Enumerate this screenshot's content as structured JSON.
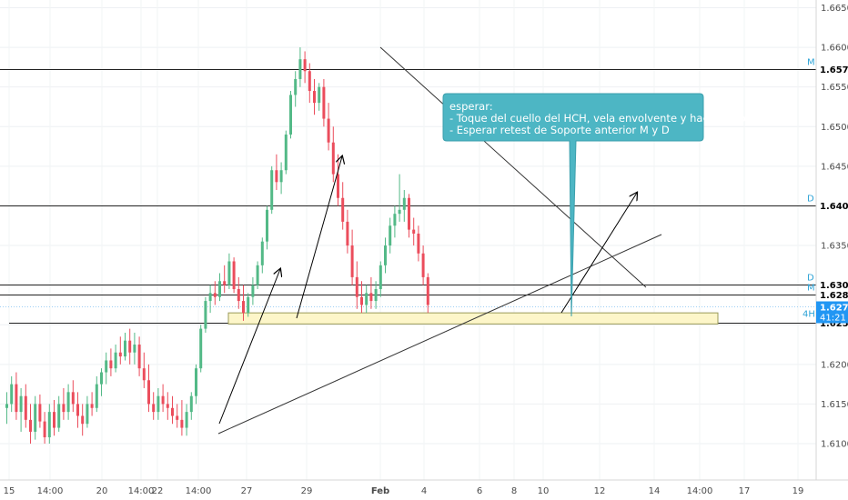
{
  "chart_data": {
    "type": "candlestick",
    "y_axis": {
      "range": [
        1.6052,
        1.6658
      ],
      "ticks": [
        "1.66500",
        "1.66000",
        "1.65500",
        "1.65000",
        "1.64500",
        "1.64000",
        "1.63500",
        "1.63000",
        "1.62500",
        "1.62000",
        "1.61500",
        "1.61000"
      ]
    },
    "x_axis": {
      "tick_labels": [
        "15",
        "14:00",
        "20",
        "14:00",
        "22",
        "14:00",
        "27",
        "29",
        "Feb",
        "4",
        "6",
        "8",
        "10",
        "12",
        "14",
        "14:00",
        "17",
        "19"
      ]
    },
    "price_levels": [
      {
        "value": "1.65727",
        "tag": "M"
      },
      {
        "value": "1.64010",
        "tag": "D"
      },
      {
        "value": "1.63013",
        "tag": "D"
      },
      {
        "value": "1.62878",
        "tag": "M"
      },
      {
        "value": "1.62530",
        "tag": ""
      }
    ],
    "current_price": {
      "value": "1.62735",
      "timer": "41:21",
      "timeframe": "4H"
    },
    "colors": {
      "up": "#53b987",
      "down": "#eb4d5c",
      "current": "#2196f3",
      "note_box": "#4db6c4",
      "zone_fill": "#fdf6c9",
      "zone_border": "#9a9a58",
      "line": "#222222"
    },
    "annotation": {
      "lines": [
        "esperar:",
        "- Toque del cuello del HCH, vela envolvente y hacia arriba",
        "- Esperar retest de Soporte anterior M y D"
      ]
    },
    "support_zone": [
      1.6251,
      1.6265
    ],
    "candles": [
      [
        1.6145,
        1.6165,
        1.6125,
        1.615
      ],
      [
        1.615,
        1.6185,
        1.614,
        1.6175
      ],
      [
        1.6175,
        1.619,
        1.613,
        1.614
      ],
      [
        1.614,
        1.617,
        1.6115,
        1.616
      ],
      [
        1.616,
        1.6175,
        1.612,
        1.613
      ],
      [
        1.613,
        1.615,
        1.61,
        1.6115
      ],
      [
        1.6115,
        1.616,
        1.6105,
        1.615
      ],
      [
        1.615,
        1.6162,
        1.612,
        1.6128
      ],
      [
        1.6128,
        1.614,
        1.61,
        1.6108
      ],
      [
        1.6108,
        1.615,
        1.61,
        1.614
      ],
      [
        1.614,
        1.6155,
        1.611,
        1.612
      ],
      [
        1.612,
        1.616,
        1.6115,
        1.615
      ],
      [
        1.615,
        1.617,
        1.613,
        1.614
      ],
      [
        1.614,
        1.6175,
        1.613,
        1.6165
      ],
      [
        1.6165,
        1.618,
        1.614,
        1.615
      ],
      [
        1.615,
        1.6165,
        1.612,
        1.6135
      ],
      [
        1.6135,
        1.615,
        1.611,
        1.6125
      ],
      [
        1.6125,
        1.616,
        1.612,
        1.615
      ],
      [
        1.615,
        1.6165,
        1.6135,
        1.6145
      ],
      [
        1.6145,
        1.6185,
        1.614,
        1.6175
      ],
      [
        1.6175,
        1.6195,
        1.616,
        1.619
      ],
      [
        1.619,
        1.6215,
        1.6175,
        1.6205
      ],
      [
        1.6205,
        1.622,
        1.6185,
        1.6195
      ],
      [
        1.6195,
        1.6225,
        1.619,
        1.6215
      ],
      [
        1.6215,
        1.6235,
        1.62,
        1.621
      ],
      [
        1.621,
        1.624,
        1.6205,
        1.623
      ],
      [
        1.623,
        1.6245,
        1.62,
        1.6215
      ],
      [
        1.6215,
        1.624,
        1.62,
        1.6225
      ],
      [
        1.6225,
        1.6235,
        1.6185,
        1.6195
      ],
      [
        1.6195,
        1.6215,
        1.617,
        1.618
      ],
      [
        1.618,
        1.62,
        1.614,
        1.615
      ],
      [
        1.615,
        1.6165,
        1.613,
        1.614
      ],
      [
        1.614,
        1.617,
        1.613,
        1.616
      ],
      [
        1.616,
        1.6175,
        1.614,
        1.615
      ],
      [
        1.615,
        1.6165,
        1.613,
        1.6145
      ],
      [
        1.6145,
        1.616,
        1.6125,
        1.6135
      ],
      [
        1.6135,
        1.615,
        1.612,
        1.613
      ],
      [
        1.613,
        1.6155,
        1.611,
        1.612
      ],
      [
        1.612,
        1.615,
        1.611,
        1.614
      ],
      [
        1.614,
        1.6165,
        1.613,
        1.616
      ],
      [
        1.616,
        1.62,
        1.615,
        1.6195
      ],
      [
        1.6195,
        1.625,
        1.619,
        1.6245
      ],
      [
        1.6245,
        1.6285,
        1.624,
        1.628
      ],
      [
        1.628,
        1.63,
        1.6265,
        1.629
      ],
      [
        1.629,
        1.6305,
        1.6275,
        1.6285
      ],
      [
        1.6285,
        1.6315,
        1.628,
        1.6305
      ],
      [
        1.6305,
        1.6325,
        1.629,
        1.63
      ],
      [
        1.63,
        1.634,
        1.6295,
        1.633
      ],
      [
        1.633,
        1.6335,
        1.629,
        1.6295
      ],
      [
        1.6295,
        1.631,
        1.627,
        1.628
      ],
      [
        1.628,
        1.63,
        1.6255,
        1.6265
      ],
      [
        1.6265,
        1.629,
        1.626,
        1.6285
      ],
      [
        1.6285,
        1.631,
        1.6275,
        1.63
      ],
      [
        1.63,
        1.633,
        1.6295,
        1.6325
      ],
      [
        1.6325,
        1.636,
        1.6315,
        1.6355
      ],
      [
        1.6355,
        1.64,
        1.6345,
        1.6395
      ],
      [
        1.6395,
        1.645,
        1.639,
        1.6445
      ],
      [
        1.6445,
        1.6465,
        1.642,
        1.643
      ],
      [
        1.643,
        1.6455,
        1.6415,
        1.6445
      ],
      [
        1.6445,
        1.6495,
        1.644,
        1.649
      ],
      [
        1.649,
        1.6545,
        1.6485,
        1.654
      ],
      [
        1.654,
        1.657,
        1.6525,
        1.656
      ],
      [
        1.656,
        1.66,
        1.655,
        1.6585
      ],
      [
        1.6585,
        1.6595,
        1.6555,
        1.657
      ],
      [
        1.657,
        1.658,
        1.653,
        1.6545
      ],
      [
        1.6545,
        1.656,
        1.6515,
        1.653
      ],
      [
        1.653,
        1.6555,
        1.652,
        1.655
      ],
      [
        1.655,
        1.656,
        1.65,
        1.651
      ],
      [
        1.651,
        1.653,
        1.647,
        1.648
      ],
      [
        1.648,
        1.65,
        1.643,
        1.644
      ],
      [
        1.644,
        1.6465,
        1.64,
        1.641
      ],
      [
        1.641,
        1.643,
        1.637,
        1.638
      ],
      [
        1.638,
        1.6395,
        1.634,
        1.635
      ],
      [
        1.635,
        1.637,
        1.63,
        1.631
      ],
      [
        1.631,
        1.633,
        1.627,
        1.6285
      ],
      [
        1.6285,
        1.6305,
        1.6265,
        1.6275
      ],
      [
        1.6275,
        1.63,
        1.6265,
        1.629
      ],
      [
        1.629,
        1.631,
        1.627,
        1.628
      ],
      [
        1.628,
        1.6305,
        1.627,
        1.6295
      ],
      [
        1.6295,
        1.633,
        1.6285,
        1.6325
      ],
      [
        1.6325,
        1.636,
        1.6315,
        1.635
      ],
      [
        1.635,
        1.6385,
        1.634,
        1.6375
      ],
      [
        1.6375,
        1.64,
        1.636,
        1.639
      ],
      [
        1.639,
        1.644,
        1.638,
        1.6395
      ],
      [
        1.6395,
        1.642,
        1.638,
        1.641
      ],
      [
        1.641,
        1.6415,
        1.636,
        1.637
      ],
      [
        1.637,
        1.6385,
        1.635,
        1.6365
      ],
      [
        1.6365,
        1.6375,
        1.633,
        1.634
      ],
      [
        1.634,
        1.635,
        1.63,
        1.631
      ],
      [
        1.631,
        1.6315,
        1.6265,
        1.6275
      ]
    ]
  }
}
